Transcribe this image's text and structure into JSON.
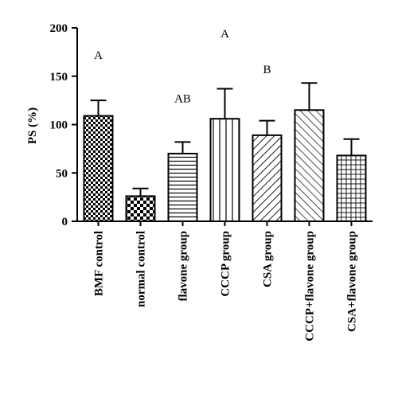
{
  "chart_data": {
    "type": "bar",
    "title": "",
    "ylabel": "PS (%)",
    "xlabel": "",
    "ylim": [
      0,
      200
    ],
    "yticks": [
      0,
      50,
      100,
      150,
      200
    ],
    "grid": false,
    "categories": [
      "BMF control",
      "normal control",
      "flavone group",
      "CCCP group",
      "CSA group",
      "CCCP+flavone group",
      "CSA+flavone group"
    ],
    "values": [
      109,
      26,
      70,
      106,
      89,
      115,
      68
    ],
    "errors": [
      16,
      8,
      12,
      31,
      15,
      28,
      17
    ],
    "patterns": [
      "checker",
      "checker-bold",
      "hlines",
      "vlines",
      "diag-right",
      "diag-left",
      "grid"
    ],
    "annotations": [
      {
        "text": "A",
        "category": "BMF control",
        "y": 168
      },
      {
        "text": "AB",
        "category": "flavone group",
        "y": 123
      },
      {
        "text": "A",
        "category": "CCCP group",
        "y": 190
      },
      {
        "text": "B",
        "category": "CSA group",
        "y": 153
      }
    ]
  }
}
